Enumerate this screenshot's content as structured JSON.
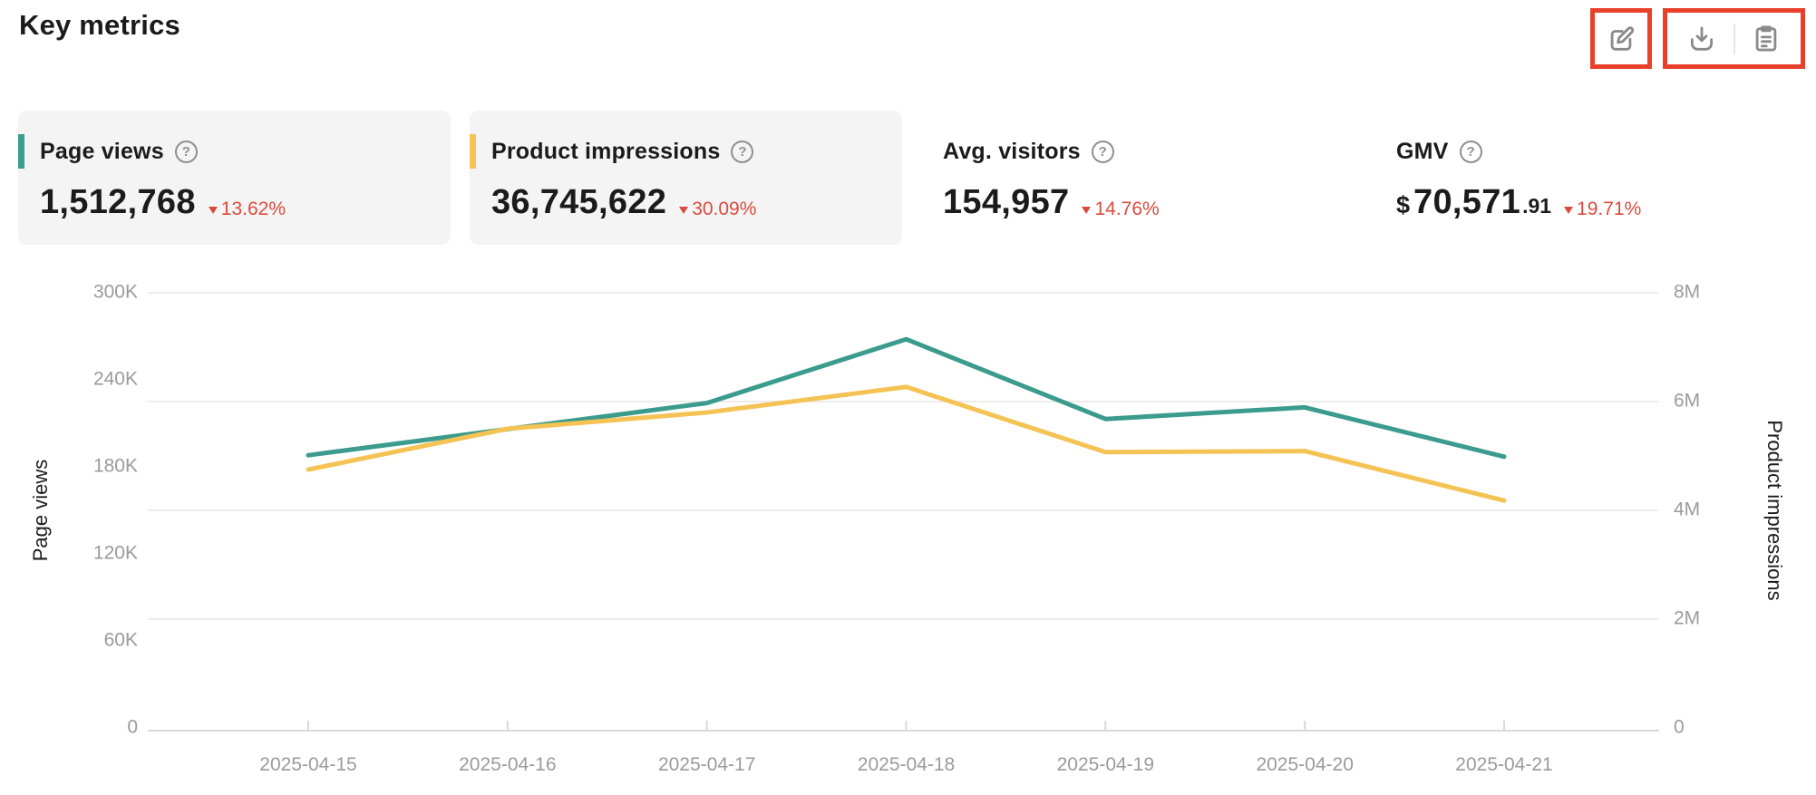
{
  "header": {
    "title": "Key metrics",
    "annotation_color": "#E8402A",
    "actions": [
      {
        "name": "edit",
        "icon": "edit-compose-icon"
      },
      {
        "name": "download",
        "icon": "download-icon"
      },
      {
        "name": "report",
        "icon": "clipboard-icon"
      }
    ]
  },
  "icons": {
    "question_glyph": "?"
  },
  "metrics": [
    {
      "label": "Page views",
      "value": "1,512,768",
      "delta": "13.62%",
      "delta_direction": "down",
      "accent_color": "#3B9B8C",
      "card_bg": "#F4F4F4",
      "delta_color": "#DB4A3F"
    },
    {
      "label": "Product impressions",
      "value": "36,745,622",
      "delta": "30.09%",
      "delta_direction": "down",
      "accent_color": "#F5C254",
      "card_bg": "#F4F4F4",
      "delta_color": "#DB4A3F"
    },
    {
      "label": "Avg. visitors",
      "value": "154,957",
      "delta": "14.76%",
      "delta_direction": "down",
      "delta_color": "#DB4A3F"
    },
    {
      "label": "GMV",
      "currency": "$",
      "value": "70,571",
      "value_decimal": ".91",
      "delta": "19.71%",
      "delta_direction": "down",
      "delta_color": "#DB4A3F"
    }
  ],
  "chart_data": {
    "type": "line",
    "categories": [
      "2025-04-15",
      "2025-04-16",
      "2025-04-17",
      "2025-04-18",
      "2025-04-19",
      "2025-04-20",
      "2025-04-21"
    ],
    "series": [
      {
        "name": "Page views",
        "axis": "left",
        "color": "#3B9B8C",
        "values": [
          188000,
          206000,
          224000,
          268000,
          213000,
          221000,
          187000
        ]
      },
      {
        "name": "Product impressions",
        "axis": "right",
        "color": "#F5C254",
        "values": [
          4750000,
          5500000,
          5800000,
          6270000,
          5070000,
          5090000,
          4180000
        ]
      }
    ],
    "left_axis": {
      "label": "Page views",
      "ticks": [
        "300K",
        "240K",
        "180K",
        "120K",
        "60K",
        "0"
      ],
      "min": 0,
      "max": 300000
    },
    "right_axis": {
      "label": "Product impressions",
      "ticks": [
        "8M",
        "6M",
        "4M",
        "2M",
        "0"
      ],
      "min": 0,
      "max": 8000000
    },
    "grid": true,
    "legend_position": "none",
    "tick_label_color": "#9B9B9B",
    "axis_name_color": "#1b1b1b",
    "grid_color": "#EDEDED",
    "axis_line_color": "#D9D9D9"
  }
}
